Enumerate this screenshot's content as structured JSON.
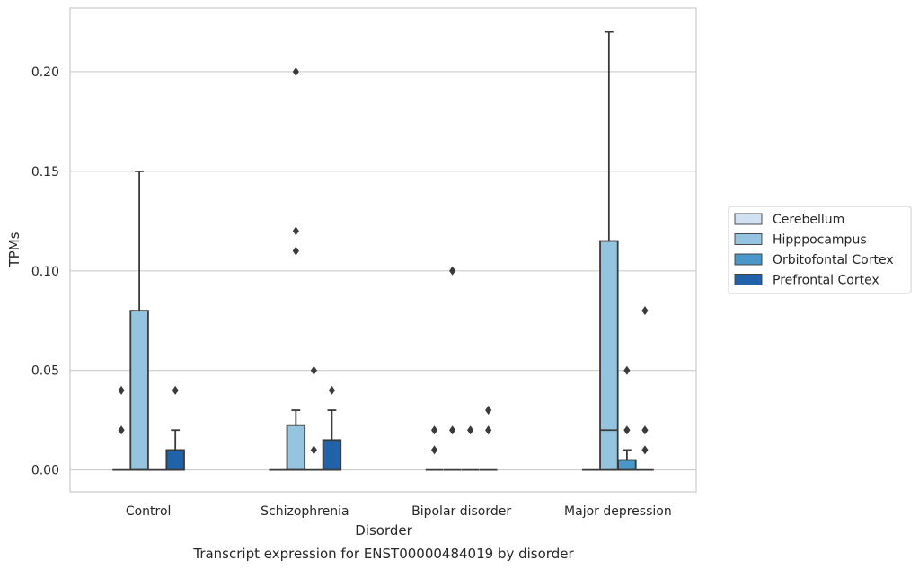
{
  "chart_data": {
    "type": "box",
    "xlabel": "Disorder",
    "ylabel": "TPMs",
    "caption": "Transcript expression for ENST00000484019 by disorder",
    "categories": [
      "Control",
      "Schizophrenia",
      "Bipolar disorder",
      "Major depression"
    ],
    "ylim": [
      -0.011,
      0.232
    ],
    "yticks": [
      0.0,
      0.05,
      0.1,
      0.15,
      0.2
    ],
    "ytick_labels": [
      "0.00",
      "0.05",
      "0.10",
      "0.15",
      "0.20"
    ],
    "grid": true,
    "legend_placement": "right",
    "series": [
      {
        "name": "Cerebellum",
        "color": "#d0e1f2",
        "boxes": [
          {
            "q1": 0,
            "median": 0,
            "q3": 0,
            "wlow": 0,
            "whigh": 0,
            "outliers": [
              0.02,
              0.04
            ]
          },
          {
            "q1": 0,
            "median": 0,
            "q3": 0,
            "wlow": 0,
            "whigh": 0,
            "outliers": []
          },
          {
            "q1": 0,
            "median": 0,
            "q3": 0,
            "wlow": 0,
            "whigh": 0,
            "outliers": [
              0.01,
              0.02
            ]
          },
          {
            "q1": 0,
            "median": 0,
            "q3": 0,
            "wlow": 0,
            "whigh": 0,
            "outliers": []
          }
        ]
      },
      {
        "name": "Hipppocampus",
        "color": "#94c4df",
        "boxes": [
          {
            "q1": 0,
            "median": 0,
            "q3": 0.08,
            "wlow": 0,
            "whigh": 0.15,
            "outliers": []
          },
          {
            "q1": 0,
            "median": 0,
            "q3": 0.0225,
            "wlow": 0,
            "whigh": 0.03,
            "outliers": [
              0.11,
              0.12,
              0.2
            ]
          },
          {
            "q1": 0,
            "median": 0,
            "q3": 0,
            "wlow": 0,
            "whigh": 0,
            "outliers": [
              0.02,
              0.1
            ]
          },
          {
            "q1": 0,
            "median": 0.02,
            "q3": 0.115,
            "wlow": 0,
            "whigh": 0.22,
            "outliers": []
          }
        ]
      },
      {
        "name": "Orbitofontal Cortex",
        "color": "#4a98c9",
        "boxes": [
          {
            "q1": 0,
            "median": 0,
            "q3": 0,
            "wlow": 0,
            "whigh": 0,
            "outliers": []
          },
          {
            "q1": 0,
            "median": 0,
            "q3": 0,
            "wlow": 0,
            "whigh": 0,
            "outliers": [
              0.01,
              0.05
            ]
          },
          {
            "q1": 0,
            "median": 0,
            "q3": 0,
            "wlow": 0,
            "whigh": 0,
            "outliers": [
              0.02
            ]
          },
          {
            "q1": 0,
            "median": 0,
            "q3": 0.005,
            "wlow": 0,
            "whigh": 0.01,
            "outliers": [
              0.02,
              0.05
            ]
          }
        ]
      },
      {
        "name": "Prefrontal Cortex",
        "color": "#2163aa",
        "boxes": [
          {
            "q1": 0,
            "median": 0,
            "q3": 0.01,
            "wlow": 0,
            "whigh": 0.02,
            "outliers": [
              0.04
            ]
          },
          {
            "q1": 0,
            "median": 0,
            "q3": 0.015,
            "wlow": 0,
            "whigh": 0.03,
            "outliers": [
              0.04
            ]
          },
          {
            "q1": 0,
            "median": 0,
            "q3": 0,
            "wlow": 0,
            "whigh": 0,
            "outliers": [
              0.02,
              0.03
            ]
          },
          {
            "q1": 0,
            "median": 0,
            "q3": 0,
            "wlow": 0,
            "whigh": 0,
            "outliers": [
              0.01,
              0.02,
              0.08
            ]
          }
        ]
      }
    ]
  }
}
